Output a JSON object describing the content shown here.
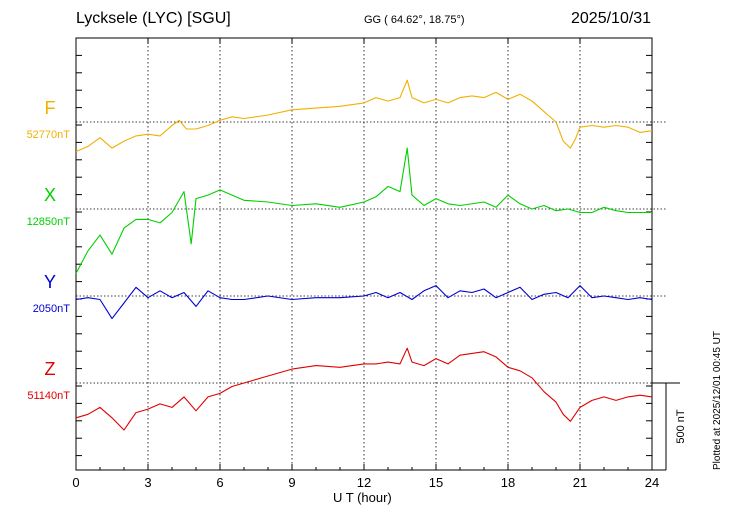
{
  "header": {
    "title": "Lycksele (LYC)  [SGU]",
    "coords": "GG ( 64.62°,  18.75°)",
    "date": "2025/10/31"
  },
  "footer": {
    "plotted": "Plotted at 2025/12/01 00:45 UT",
    "scale_label": "500 nT"
  },
  "chart_data": {
    "type": "line",
    "xlabel": "U T (hour)",
    "xlim": [
      0,
      24
    ],
    "xticks": [
      "0",
      "3",
      "6",
      "9",
      "12",
      "15",
      "18",
      "21",
      "24"
    ],
    "grid": true,
    "scale_bar_nT": 500,
    "series": [
      {
        "name": "F",
        "baseline_label": "52770nT",
        "color": "#f0b000",
        "baseline_nT": 52770,
        "x": [
          0,
          0.5,
          1,
          1.5,
          2,
          2.5,
          3,
          3.5,
          4,
          4.3,
          4.6,
          5,
          5.5,
          6,
          6.5,
          7,
          8,
          9,
          10,
          11,
          12,
          12.5,
          13,
          13.5,
          13.8,
          14,
          14.5,
          15,
          15.5,
          16,
          16.5,
          17,
          17.5,
          18,
          18.5,
          19,
          19.5,
          20,
          20.3,
          20.6,
          20.8,
          21,
          21.5,
          22,
          22.5,
          23,
          23.5,
          24
        ],
        "values": [
          -170,
          -140,
          -90,
          -150,
          -110,
          -80,
          -70,
          -80,
          -20,
          10,
          -40,
          -40,
          -20,
          10,
          30,
          20,
          40,
          70,
          80,
          90,
          110,
          140,
          120,
          140,
          240,
          140,
          110,
          130,
          110,
          140,
          150,
          140,
          170,
          130,
          160,
          120,
          60,
          0,
          -110,
          -150,
          -100,
          -30,
          -20,
          -30,
          -20,
          -30,
          -60,
          -50
        ]
      },
      {
        "name": "X",
        "baseline_label": "12850nT",
        "color": "#00d000",
        "baseline_nT": 12850,
        "x": [
          0,
          0.5,
          1,
          1.5,
          2,
          2.5,
          3,
          3.5,
          4,
          4.5,
          4.8,
          5,
          5.5,
          6,
          6.5,
          7,
          8,
          9,
          10,
          11,
          12,
          12.5,
          13,
          13.5,
          13.8,
          14,
          14.5,
          15,
          15.5,
          16,
          17,
          17.5,
          18,
          18.5,
          19,
          19.5,
          20,
          20.5,
          21,
          21.5,
          22,
          22.5,
          23,
          23.5,
          24
        ],
        "values": [
          -370,
          -240,
          -150,
          -260,
          -110,
          -60,
          -60,
          -80,
          -20,
          100,
          -200,
          60,
          80,
          110,
          80,
          50,
          40,
          20,
          30,
          10,
          40,
          70,
          130,
          100,
          350,
          80,
          20,
          60,
          30,
          20,
          40,
          10,
          80,
          30,
          0,
          20,
          -10,
          0,
          -20,
          -20,
          10,
          -10,
          -20,
          -20,
          -20
        ]
      },
      {
        "name": "Y",
        "baseline_label": "2050nT",
        "color": "#0000d0",
        "baseline_nT": 2050,
        "x": [
          0,
          0.5,
          1,
          1.5,
          2,
          2.5,
          3,
          3.5,
          4,
          4.5,
          5,
          5.5,
          6,
          6.5,
          7,
          8,
          9,
          10,
          11,
          12,
          12.5,
          13,
          13.5,
          14,
          14.5,
          15,
          15.5,
          16,
          16.5,
          17,
          17.5,
          18,
          18.5,
          19,
          19.5,
          20,
          20.5,
          21,
          21.5,
          22,
          22.5,
          23,
          23.5,
          24
        ],
        "values": [
          -20,
          -10,
          -20,
          -130,
          -40,
          50,
          -10,
          30,
          -10,
          20,
          -60,
          30,
          -10,
          -20,
          -20,
          0,
          -20,
          -10,
          -10,
          0,
          20,
          -10,
          20,
          -20,
          30,
          60,
          -10,
          30,
          20,
          40,
          -10,
          20,
          50,
          -20,
          10,
          20,
          -10,
          60,
          -10,
          0,
          -10,
          -20,
          -10,
          -20
        ]
      },
      {
        "name": "Z",
        "baseline_label": "51140nT",
        "color": "#e00000",
        "baseline_nT": 51140,
        "x": [
          0,
          0.5,
          1,
          1.5,
          2,
          2.5,
          3,
          3.5,
          4,
          4.5,
          5,
          5.5,
          6,
          6.5,
          7,
          8,
          9,
          10,
          11,
          12,
          12.5,
          13,
          13.5,
          13.8,
          14,
          14.5,
          15,
          15.5,
          16,
          16.5,
          17,
          17.5,
          18,
          18.5,
          19,
          19.5,
          20,
          20.3,
          20.6,
          21,
          21.5,
          22,
          22.5,
          23,
          23.5,
          24
        ],
        "values": [
          -200,
          -180,
          -140,
          -200,
          -270,
          -170,
          -150,
          -120,
          -140,
          -80,
          -160,
          -80,
          -60,
          -20,
          0,
          40,
          80,
          100,
          90,
          110,
          110,
          120,
          110,
          200,
          120,
          100,
          140,
          110,
          160,
          170,
          180,
          150,
          90,
          70,
          30,
          -50,
          -110,
          -180,
          -220,
          -140,
          -100,
          -80,
          -100,
          -80,
          -70,
          -80
        ]
      }
    ]
  }
}
